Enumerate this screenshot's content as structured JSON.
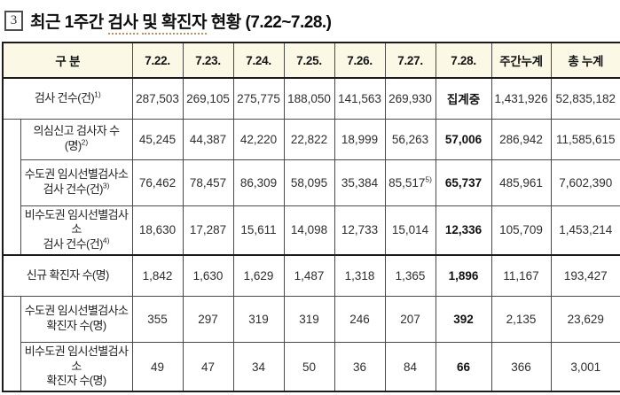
{
  "title": {
    "box_number": "3",
    "text_prefix": "최근 1주간 ",
    "underlined_1": "검사",
    "text_mid": " ",
    "underlined_2": "및 확진자",
    "text_suffix": " 현황 (7.22~7.28.)"
  },
  "colors": {
    "header_background": "#fbf9e6",
    "border_dark": "#1c1c1c",
    "border_inner": "#4a4a4a",
    "title_underline": "#bd8f66"
  },
  "table": {
    "header": [
      "구 분",
      "7.22.",
      "7.23.",
      "7.24.",
      "7.25.",
      "7.26.",
      "7.27.",
      "7.28.",
      "주간누계",
      "총 누계"
    ],
    "bold_value_column_index": 6,
    "rows": [
      {
        "label_lines": [
          "검사 건수(건)"
        ],
        "label_sup": "1)",
        "sub": false,
        "tall": false,
        "group_sep": false,
        "values": [
          "287,503",
          "269,105",
          "275,775",
          "188,050",
          "141,563",
          "269,930",
          "집계중",
          "1,431,926",
          "52,835,182"
        ],
        "value_sup": null
      },
      {
        "label_lines": [
          "의심신고 검사자 수(명)"
        ],
        "label_sup": "2)",
        "sub": true,
        "indent_span": 3,
        "tall": false,
        "group_sep": false,
        "values": [
          "45,245",
          "44,387",
          "42,220",
          "22,822",
          "18,999",
          "56,263",
          "57,006",
          "286,942",
          "11,585,615"
        ],
        "value_sup": null
      },
      {
        "label_lines": [
          "수도권 임시선별검사소",
          "검사 건수(건)"
        ],
        "label_sup": "3)",
        "sub": true,
        "tall": true,
        "group_sep": false,
        "values": [
          "76,462",
          "78,457",
          "86,309",
          "58,095",
          "35,384",
          "85,517",
          "65,737",
          "485,961",
          "7,602,390"
        ],
        "value_sup": {
          "index": 5,
          "text": "5)"
        }
      },
      {
        "label_lines": [
          "비수도권 임시선별검사소",
          "검사 건수(건)"
        ],
        "label_sup": "4)",
        "sub": true,
        "tall": true,
        "group_sep": false,
        "values": [
          "18,630",
          "17,287",
          "15,611",
          "14,098",
          "12,733",
          "15,014",
          "12,336",
          "105,709",
          "1,453,214"
        ],
        "value_sup": null
      },
      {
        "label_lines": [
          "신규 확진자 수(명)"
        ],
        "label_sup": null,
        "sub": false,
        "tall": false,
        "group_sep": true,
        "values": [
          "1,842",
          "1,630",
          "1,629",
          "1,487",
          "1,318",
          "1,365",
          "1,896",
          "11,167",
          "193,427"
        ],
        "value_sup": null
      },
      {
        "label_lines": [
          "수도권 임시선별검사소",
          "확진자 수(명)"
        ],
        "label_sup": null,
        "sub": true,
        "indent_span": 2,
        "tall": true,
        "group_sep": false,
        "values": [
          "355",
          "297",
          "319",
          "319",
          "246",
          "207",
          "392",
          "2,135",
          "23,629"
        ],
        "value_sup": null
      },
      {
        "label_lines": [
          "비수도권 임시선별검사소",
          "확진자 수(명)"
        ],
        "label_sup": null,
        "sub": true,
        "tall": true,
        "group_sep": false,
        "values": [
          "49",
          "47",
          "34",
          "50",
          "36",
          "84",
          "66",
          "366",
          "3,001"
        ],
        "value_sup": null
      }
    ]
  }
}
